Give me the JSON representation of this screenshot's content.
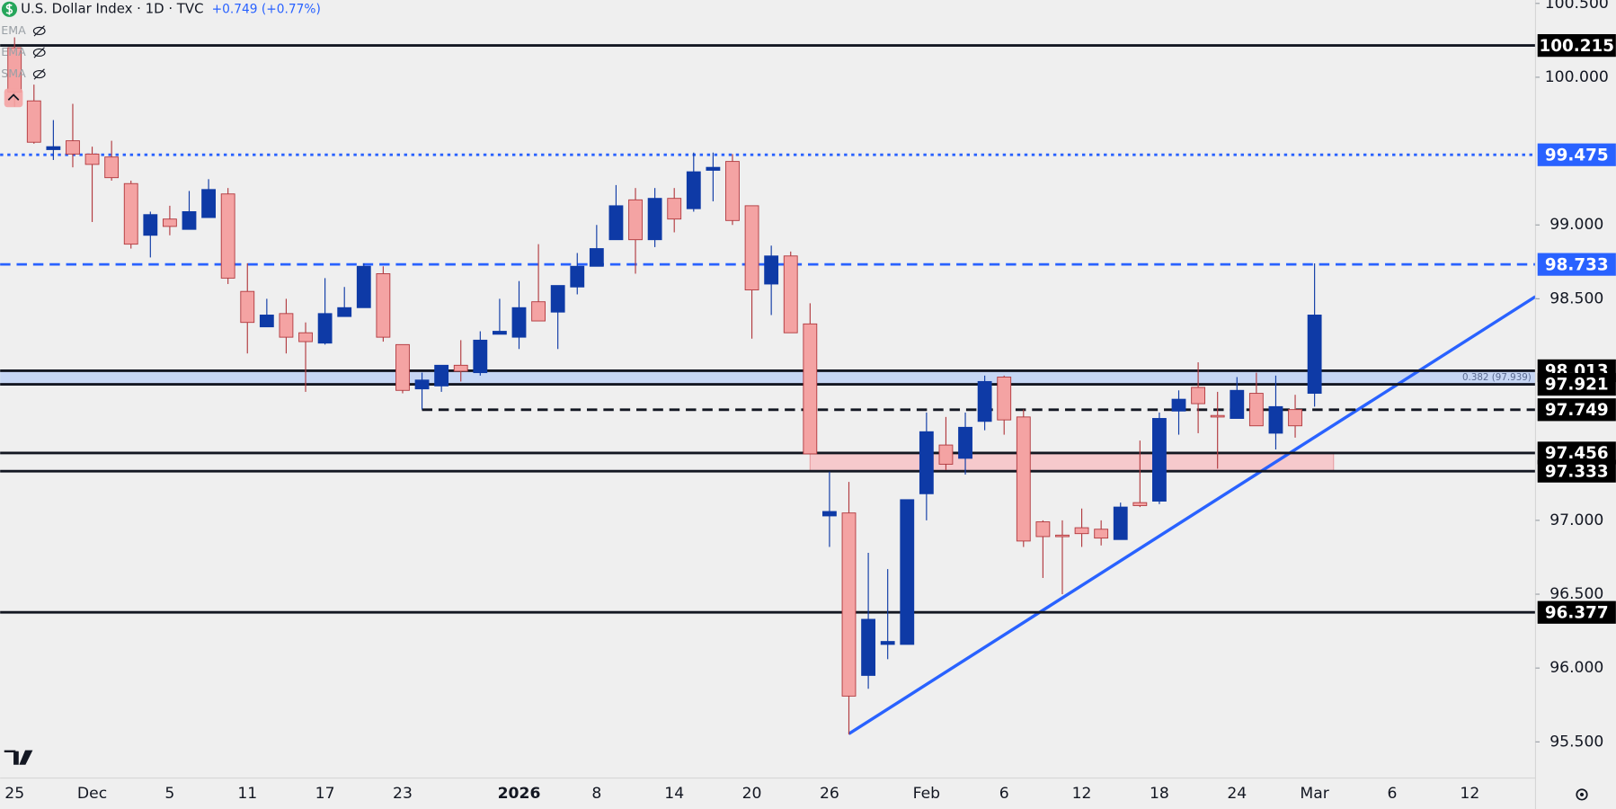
{
  "chart_data": {
    "type": "candlestick",
    "title": "U.S. Dollar Index · 1D · TVC",
    "change": "+0.749 (+0.77%)",
    "indicators": [
      "EMA",
      "EMA",
      "SMA"
    ],
    "categories": [
      "25",
      null,
      null,
      null,
      "Dec",
      null,
      null,
      null,
      "5",
      null,
      null,
      null,
      "11",
      null,
      null,
      null,
      "17",
      null,
      null,
      null,
      "23",
      null,
      null,
      null,
      null,
      null,
      "2026",
      null,
      null,
      null,
      "8",
      null,
      null,
      null,
      "14",
      null,
      null,
      null,
      "20",
      null,
      null,
      null,
      "26",
      null,
      null,
      null,
      null,
      "Feb",
      null,
      null,
      null,
      "6",
      null,
      null,
      null,
      "12",
      null,
      null,
      null,
      "18",
      null,
      null,
      null,
      "24",
      null,
      null,
      null,
      "Mar",
      null,
      null,
      null,
      "6",
      null,
      null,
      null,
      "12",
      null,
      null,
      null
    ],
    "open": [
      100.2,
      99.84,
      99.51,
      99.57,
      99.48,
      99.46,
      99.28,
      98.93,
      99.04,
      98.97,
      99.05,
      99.21,
      98.55,
      98.31,
      98.4,
      98.27,
      98.2,
      98.38,
      98.44,
      98.67,
      98.19,
      97.89,
      97.91,
      98.05,
      98.0,
      98.26,
      98.24,
      98.48,
      98.41,
      98.58,
      98.72,
      98.9,
      99.17,
      98.9,
      99.18,
      99.11,
      99.37,
      99.43,
      99.13,
      98.6,
      98.79,
      98.33,
      97.03,
      97.05,
      95.95,
      96.16,
      96.16,
      97.18,
      97.51,
      97.42,
      97.67,
      97.97,
      97.7,
      96.99,
      96.9,
      96.95,
      96.94,
      96.87,
      97.12,
      97.13,
      97.74,
      97.9,
      97.71,
      97.69,
      97.86,
      97.59,
      97.75,
      97.86,
      null,
      null,
      null,
      null,
      null,
      null,
      null,
      null,
      null,
      null,
      null
    ],
    "high": [
      100.27,
      99.95,
      99.71,
      99.82,
      99.53,
      99.57,
      99.3,
      99.09,
      99.13,
      99.23,
      99.31,
      99.25,
      98.74,
      98.5,
      98.5,
      98.34,
      98.64,
      98.58,
      98.74,
      98.72,
      98.19,
      98.0,
      98.05,
      98.22,
      98.28,
      98.5,
      98.62,
      98.87,
      98.59,
      98.81,
      99.0,
      99.27,
      99.25,
      99.25,
      99.25,
      99.49,
      99.49,
      99.48,
      99.13,
      98.86,
      98.82,
      98.47,
      97.33,
      97.26,
      96.78,
      96.67,
      97.14,
      97.73,
      97.7,
      97.73,
      97.98,
      97.98,
      97.75,
      97.0,
      97.0,
      97.08,
      97.0,
      97.12,
      97.54,
      97.73,
      97.88,
      98.07,
      97.87,
      97.97,
      98.0,
      97.98,
      97.85,
      98.74,
      null,
      null,
      null,
      null,
      null,
      null,
      null,
      null,
      null,
      null,
      null
    ],
    "low": [
      99.8,
      99.55,
      99.44,
      99.39,
      99.02,
      99.3,
      98.84,
      98.78,
      98.93,
      98.97,
      99.05,
      98.6,
      98.13,
      98.31,
      98.13,
      97.87,
      98.19,
      98.38,
      98.44,
      98.21,
      97.86,
      97.75,
      97.87,
      97.94,
      97.98,
      98.26,
      98.16,
      98.35,
      98.16,
      98.53,
      98.72,
      98.9,
      98.67,
      98.85,
      98.95,
      99.09,
      99.16,
      99.0,
      98.23,
      98.39,
      98.27,
      97.45,
      96.82,
      95.55,
      95.86,
      96.06,
      96.16,
      97.0,
      97.34,
      97.31,
      97.61,
      97.58,
      96.82,
      96.61,
      96.5,
      96.82,
      96.83,
      96.87,
      97.09,
      97.11,
      97.58,
      97.59,
      97.35,
      97.69,
      97.64,
      97.48,
      97.56,
      97.77,
      null,
      null,
      null,
      null,
      null,
      null,
      null,
      null,
      null,
      null,
      null
    ],
    "close": [
      99.9,
      99.56,
      99.53,
      99.48,
      99.41,
      99.32,
      98.87,
      99.07,
      98.99,
      99.09,
      99.24,
      98.64,
      98.34,
      98.39,
      98.24,
      98.21,
      98.4,
      98.44,
      98.72,
      98.24,
      97.88,
      97.95,
      98.05,
      98.01,
      98.22,
      98.28,
      98.44,
      98.35,
      98.59,
      98.72,
      98.84,
      99.13,
      98.9,
      99.18,
      99.04,
      99.36,
      99.39,
      99.03,
      98.56,
      98.79,
      98.27,
      97.45,
      97.06,
      95.81,
      96.33,
      96.18,
      97.14,
      97.6,
      97.38,
      97.63,
      97.94,
      97.68,
      96.86,
      96.89,
      96.89,
      96.91,
      96.88,
      97.09,
      97.1,
      97.69,
      97.82,
      97.79,
      97.7,
      97.88,
      97.64,
      97.77,
      97.64,
      98.39,
      null,
      null,
      null,
      null,
      null,
      null,
      null,
      null,
      null,
      null,
      null
    ],
    "up_color": "#0e3aa6",
    "down_color": "#f4a3a3",
    "ylim": [
      95.255,
      100.523
    ],
    "yticks": [
      {
        "value": 100.5,
        "label": "100.500"
      },
      {
        "value": 100,
        "label": "100.000"
      },
      {
        "value": 99,
        "label": "99.000"
      },
      {
        "value": 98.5,
        "label": "98.500"
      },
      {
        "value": 97,
        "label": "97.000"
      },
      {
        "value": 96.5,
        "label": "96.500"
      },
      {
        "value": 96,
        "label": "96.000"
      },
      {
        "value": 95.5,
        "label": "95.500"
      }
    ],
    "levels": [
      {
        "value": 100.215,
        "style": "solid",
        "color": "#131722"
      },
      {
        "value": 99.475,
        "style": "dotted",
        "color": "#2962ff"
      },
      {
        "value": 98.733,
        "style": "dashed",
        "color": "#2962ff"
      },
      {
        "value": 98.013,
        "style": "solid",
        "color": "#131722"
      },
      {
        "value": 97.921,
        "style": "solid",
        "color": "#131722"
      },
      {
        "value": 97.749,
        "style": "dashed",
        "color": "#131722"
      },
      {
        "value": 97.456,
        "style": "solid",
        "color": "#131722"
      },
      {
        "value": 97.333,
        "style": "solid",
        "color": "#131722"
      },
      {
        "value": 96.377,
        "style": "solid",
        "color": "#131722"
      }
    ],
    "fib_label": "0.382 (97.939)",
    "trendline": [
      95.555,
      98.515
    ],
    "trendline_color": "#2962ff",
    "grid": false
  }
}
